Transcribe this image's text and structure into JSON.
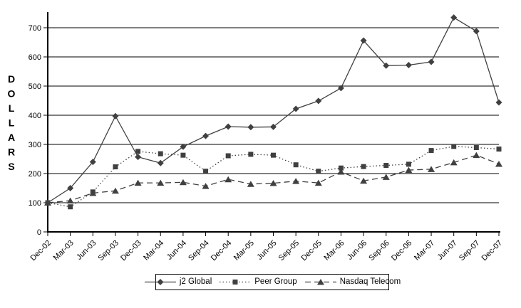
{
  "chart_data": {
    "type": "line",
    "title": "",
    "xlabel": "",
    "ylabel": "DOLLARS",
    "grid": true,
    "legend_position": "bottom",
    "yticks": [
      0,
      100,
      200,
      300,
      400,
      500,
      600,
      700
    ],
    "ylim": [
      0,
      750
    ],
    "categories": [
      "Dec-02",
      "Mar-03",
      "Jun-03",
      "Sep-03",
      "Dec-03",
      "Mar-04",
      "Jun-04",
      "Sep-04",
      "Dec-04",
      "Mar-05",
      "Jun-05",
      "Sep-05",
      "Dec-05",
      "Mar-06",
      "Jun-06",
      "Sep-06",
      "Dec-06",
      "Mar-07",
      "Jun-07",
      "Sep-07",
      "Dec-07"
    ],
    "series": [
      {
        "name": "j2 Global",
        "marker": "diamond",
        "line_style": "solid",
        "values": [
          100,
          150,
          240,
          397,
          257,
          236,
          292,
          329,
          361,
          359,
          360,
          422,
          449,
          493,
          656,
          570,
          572,
          583,
          735,
          688,
          444
        ]
      },
      {
        "name": "Peer Group",
        "marker": "square",
        "line_style": "dotted",
        "values": [
          100,
          86,
          137,
          223,
          276,
          268,
          263,
          208,
          261,
          266,
          263,
          230,
          208,
          219,
          224,
          228,
          232,
          279,
          293,
          289,
          284
        ]
      },
      {
        "name": "Nasdaq Telecom",
        "marker": "triangle",
        "line_style": "dashed",
        "values": [
          100,
          107,
          133,
          141,
          168,
          168,
          170,
          157,
          180,
          164,
          167,
          174,
          168,
          206,
          175,
          188,
          212,
          215,
          238,
          263,
          233
        ]
      }
    ],
    "colors": {
      "series": "#404040",
      "axis": "#000000",
      "grid": "#000000",
      "text": "#000000",
      "background": "#ffffff"
    }
  }
}
